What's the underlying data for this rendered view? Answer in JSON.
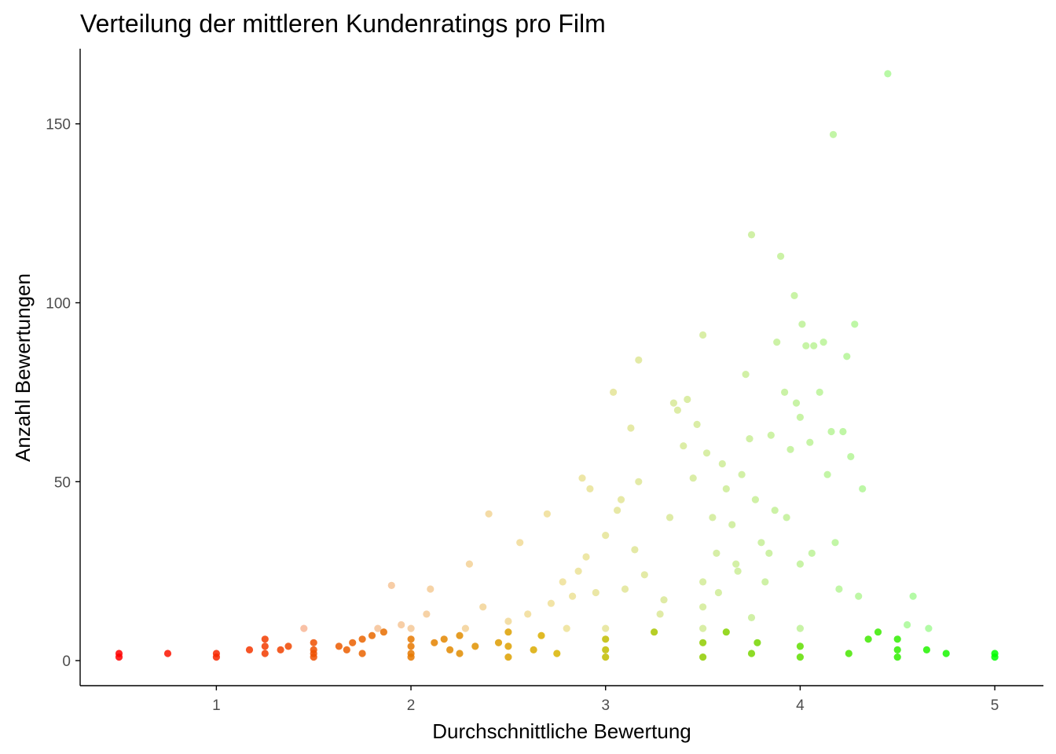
{
  "chart_data": {
    "type": "scatter",
    "title": "Verteilung der mittleren Kundenratings pro Film",
    "xlabel": "Durchschnittliche Bewertung",
    "ylabel": "Anzahl Bewertungen",
    "xlim": [
      0.3,
      5.25
    ],
    "ylim": [
      -7,
      171
    ],
    "xticks": [
      1,
      2,
      3,
      4,
      5
    ],
    "yticks": [
      0,
      50,
      100,
      150
    ],
    "grid": false,
    "legend": "none",
    "colors": {
      "low": "#ff0000",
      "mid": "#d9b400",
      "high": "#00ff00"
    },
    "series": [
      {
        "points": [
          [
            0.5,
            1
          ],
          [
            0.5,
            2
          ],
          [
            0.75,
            2
          ],
          [
            1.0,
            1
          ],
          [
            1.0,
            2
          ],
          [
            1.17,
            3
          ],
          [
            1.25,
            2
          ],
          [
            1.25,
            4
          ],
          [
            1.25,
            6
          ],
          [
            1.33,
            3
          ],
          [
            1.37,
            4
          ],
          [
            1.45,
            9
          ],
          [
            1.5,
            1
          ],
          [
            1.5,
            2
          ],
          [
            1.5,
            3
          ],
          [
            1.5,
            5
          ],
          [
            1.63,
            4
          ],
          [
            1.67,
            3
          ],
          [
            1.7,
            5
          ],
          [
            1.75,
            2
          ],
          [
            1.75,
            6
          ],
          [
            1.8,
            7
          ],
          [
            1.83,
            9
          ],
          [
            1.86,
            8
          ],
          [
            1.9,
            21
          ],
          [
            1.95,
            10
          ],
          [
            2.0,
            1
          ],
          [
            2.0,
            2
          ],
          [
            2.0,
            4
          ],
          [
            2.0,
            6
          ],
          [
            2.0,
            9
          ],
          [
            2.08,
            13
          ],
          [
            2.1,
            20
          ],
          [
            2.12,
            5
          ],
          [
            2.17,
            6
          ],
          [
            2.2,
            3
          ],
          [
            2.25,
            2
          ],
          [
            2.25,
            7
          ],
          [
            2.28,
            9
          ],
          [
            2.3,
            27
          ],
          [
            2.33,
            4
          ],
          [
            2.37,
            15
          ],
          [
            2.4,
            41
          ],
          [
            2.45,
            5
          ],
          [
            2.5,
            1
          ],
          [
            2.5,
            4
          ],
          [
            2.5,
            8
          ],
          [
            2.5,
            11
          ],
          [
            2.56,
            33
          ],
          [
            2.6,
            13
          ],
          [
            2.63,
            3
          ],
          [
            2.67,
            7
          ],
          [
            2.7,
            41
          ],
          [
            2.72,
            16
          ],
          [
            2.75,
            2
          ],
          [
            2.78,
            22
          ],
          [
            2.8,
            9
          ],
          [
            2.83,
            18
          ],
          [
            2.86,
            25
          ],
          [
            2.88,
            51
          ],
          [
            2.9,
            29
          ],
          [
            2.92,
            48
          ],
          [
            2.95,
            19
          ],
          [
            3.0,
            1
          ],
          [
            3.0,
            3
          ],
          [
            3.0,
            6
          ],
          [
            3.0,
            9
          ],
          [
            3.0,
            35
          ],
          [
            3.04,
            75
          ],
          [
            3.06,
            42
          ],
          [
            3.08,
            45
          ],
          [
            3.1,
            20
          ],
          [
            3.13,
            65
          ],
          [
            3.15,
            31
          ],
          [
            3.17,
            84
          ],
          [
            3.17,
            50
          ],
          [
            3.2,
            24
          ],
          [
            3.25,
            8
          ],
          [
            3.28,
            13
          ],
          [
            3.3,
            17
          ],
          [
            3.33,
            40
          ],
          [
            3.35,
            72
          ],
          [
            3.37,
            70
          ],
          [
            3.4,
            60
          ],
          [
            3.42,
            73
          ],
          [
            3.45,
            51
          ],
          [
            3.47,
            66
          ],
          [
            3.5,
            1
          ],
          [
            3.5,
            5
          ],
          [
            3.5,
            9
          ],
          [
            3.5,
            15
          ],
          [
            3.5,
            22
          ],
          [
            3.5,
            91
          ],
          [
            3.52,
            58
          ],
          [
            3.55,
            40
          ],
          [
            3.57,
            30
          ],
          [
            3.6,
            55
          ],
          [
            3.62,
            48
          ],
          [
            3.65,
            38
          ],
          [
            3.67,
            27
          ],
          [
            3.7,
            52
          ],
          [
            3.72,
            80
          ],
          [
            3.74,
            62
          ],
          [
            3.75,
            2
          ],
          [
            3.75,
            12
          ],
          [
            3.75,
            119
          ],
          [
            3.77,
            45
          ],
          [
            3.8,
            33
          ],
          [
            3.82,
            22
          ],
          [
            3.85,
            63
          ],
          [
            3.87,
            42
          ],
          [
            3.88,
            89
          ],
          [
            3.9,
            113
          ],
          [
            3.92,
            75
          ],
          [
            3.95,
            59
          ],
          [
            3.97,
            102
          ],
          [
            3.98,
            72
          ],
          [
            4.0,
            1
          ],
          [
            4.0,
            4
          ],
          [
            4.0,
            9
          ],
          [
            4.0,
            27
          ],
          [
            4.0,
            68
          ],
          [
            4.01,
            94
          ],
          [
            4.03,
            88
          ],
          [
            4.05,
            61
          ],
          [
            4.07,
            88
          ],
          [
            4.1,
            75
          ],
          [
            4.12,
            89
          ],
          [
            4.14,
            52
          ],
          [
            4.16,
            64
          ],
          [
            4.18,
            33
          ],
          [
            4.2,
            20
          ],
          [
            4.22,
            64
          ],
          [
            4.24,
            85
          ],
          [
            4.25,
            2
          ],
          [
            4.26,
            57
          ],
          [
            4.28,
            94
          ],
          [
            4.3,
            18
          ],
          [
            4.32,
            48
          ],
          [
            4.35,
            6
          ],
          [
            4.4,
            8
          ],
          [
            4.45,
            164
          ],
          [
            4.5,
            1
          ],
          [
            4.5,
            3
          ],
          [
            4.5,
            6
          ],
          [
            4.55,
            10
          ],
          [
            4.58,
            18
          ],
          [
            4.65,
            3
          ],
          [
            4.66,
            9
          ],
          [
            4.75,
            2
          ],
          [
            5.0,
            1
          ],
          [
            5.0,
            2
          ],
          [
            4.17,
            147
          ],
          [
            3.68,
            25
          ],
          [
            3.84,
            30
          ],
          [
            3.58,
            19
          ],
          [
            3.93,
            40
          ],
          [
            4.06,
            30
          ],
          [
            3.62,
            8
          ],
          [
            3.78,
            5
          ]
        ]
      }
    ]
  }
}
